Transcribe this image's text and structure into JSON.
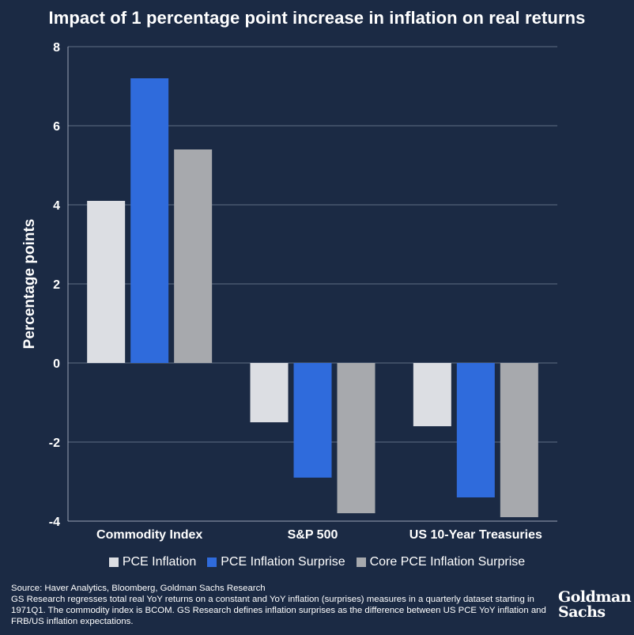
{
  "chart_data": {
    "type": "bar",
    "title": "Impact of 1 percentage point increase in inflation on real returns",
    "ylabel": "Percentage points",
    "xlabel": "",
    "ylim": [
      -4,
      8
    ],
    "yticks": [
      8,
      6,
      4,
      2,
      0,
      -2,
      -4
    ],
    "grid": true,
    "legend_placement": "bottom",
    "categories": [
      "Commodity Index",
      "S&P 500",
      "US 10-Year Treasuries"
    ],
    "series": [
      {
        "name": "PCE Inflation",
        "color": "#dcdee3",
        "values": [
          4.1,
          -1.5,
          -1.6
        ]
      },
      {
        "name": "PCE Inflation Surprise",
        "color": "#2f6bdc",
        "values": [
          7.2,
          -2.9,
          -3.4
        ]
      },
      {
        "name": "Core PCE Inflation Surprise",
        "color": "#a7a9ad",
        "values": [
          5.4,
          -3.8,
          -3.9
        ]
      }
    ]
  },
  "footer": {
    "source": "Source: Haver Analytics, Bloomberg, Goldman Sachs Research",
    "note": "GS Research regresses total real YoY returns on a constant and YoY inflation (surprises) measures in a quarterly dataset starting in 1971Q1. The commodity index is BCOM. GS Research defines inflation surprises as the difference between US PCE YoY inflation and FRB/US inflation expectations."
  },
  "logo": {
    "line1": "Goldman",
    "line2": "Sachs"
  }
}
